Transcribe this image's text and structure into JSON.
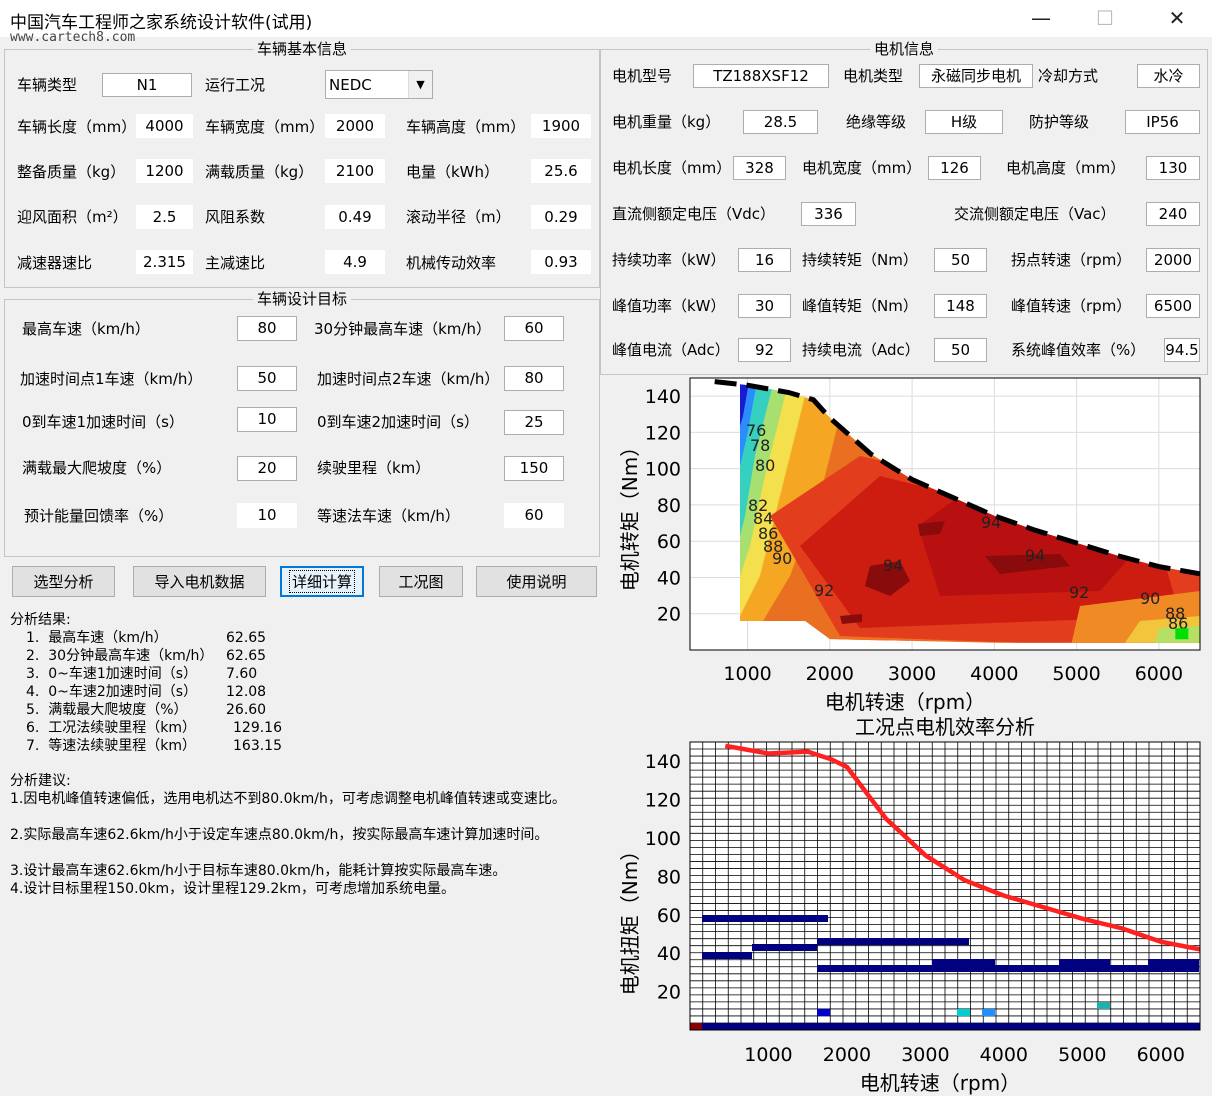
{
  "window": {
    "title": "中国汽车工程师之家系统设计软件(试用)",
    "watermark": "www.cartech8.com",
    "minimize": "—",
    "maximize": "☐",
    "close": "✕"
  },
  "vehicle_basic": {
    "title": "车辆基本信息",
    "vehicle_type_label": "车辆类型",
    "vehicle_type": "N1",
    "cycle_label": "运行工况",
    "cycle": "NEDC",
    "length_label": "车辆长度（mm）",
    "length": "4000",
    "width_label": "车辆宽度（mm）",
    "width": "2000",
    "height_label": "车辆高度（mm）",
    "height": "1900",
    "curb_mass_label": "整备质量（kg）",
    "curb_mass": "1200",
    "full_mass_label": "满载质量（kg）",
    "full_mass": "2100",
    "energy_label": "电量（kWh）",
    "energy": "25.6",
    "frontal_area_label": "迎风面积（m²）",
    "frontal_area": "2.5",
    "drag_label": "风阻系数",
    "drag": "0.49",
    "rolling_radius_label": "滚动半径（m）",
    "rolling_radius": "0.29",
    "reducer_label": "减速器速比",
    "reducer": "2.315",
    "final_drive_label": "主减速比",
    "final_drive": "4.9",
    "mech_eff_label": "机械传动效率",
    "mech_eff": "0.93"
  },
  "design_target": {
    "title": "车辆设计目标",
    "vmax_label": "最高车速（km/h）",
    "vmax": "80",
    "v30_label": "30分钟最高车速（km/h）",
    "v30": "60",
    "acc_v1_label": "加速时间点1车速（km/h）",
    "acc_v1": "50",
    "acc_v2_label": "加速时间点2车速（km/h）",
    "acc_v2": "80",
    "t1_label": "0到车速1加速时间（s）",
    "t1": "10",
    "t2_label": "0到车速2加速时间（s）",
    "t2": "25",
    "grade_label": "满载最大爬坡度（%）",
    "grade": "20",
    "range_label": "续驶里程（km）",
    "range": "150",
    "regen_label": "预计能量回馈率（%）",
    "regen": "10",
    "cs_speed_label": "等速法车速（km/h）",
    "cs_speed": "60"
  },
  "buttons": {
    "select": "选型分析",
    "import": "导入电机数据",
    "detail": "详细计算",
    "cycle": "工况图",
    "help": "使用说明"
  },
  "results": {
    "header": "分析结果:",
    "items": [
      {
        "label": "1.  最高车速（km/h）",
        "value": "62.65"
      },
      {
        "label": "2.  30分钟最高车速（km/h）",
        "value": "62.65"
      },
      {
        "label": "3.  0~车速1加速时间（s）",
        "value": "7.60"
      },
      {
        "label": "4.  0~车速2加速时间（s）",
        "value": "12.08"
      },
      {
        "label": "5.  满载最大爬坡度（%）",
        "value": "26.60"
      },
      {
        "label": "6.  工况法续驶里程（km）",
        "value": "129.16"
      },
      {
        "label": "7.  等速法续驶里程（km）",
        "value": "163.15"
      }
    ]
  },
  "advice": {
    "header": "分析建议:",
    "items": [
      "1.因电机峰值转速偏低，选用电机达不到80.0km/h，可考虑调整电机峰值转速或变速比。",
      "2.实际最高车速62.6km/h小于设定车速点80.0km/h，按实际最高车速计算加速时间。",
      "3.设计最高车速62.6km/h小于目标车速80.0km/h，能耗计算按实际最高车速。",
      "4.设计目标里程150.0km，设计里程129.2km，可考虑增加系统电量。"
    ]
  },
  "motor": {
    "title": "电机信息",
    "model_label": "电机型号",
    "model": "TZ188XSF12",
    "type_label": "电机类型",
    "type": "永磁同步电机",
    "cooling_label": "冷却方式",
    "cooling": "水冷",
    "weight_label": "电机重量（kg）",
    "weight": "28.5",
    "insulation_label": "绝缘等级",
    "insulation": "H级",
    "protection_label": "防护等级",
    "protection": "IP56",
    "mlen_label": "电机长度（mm）",
    "mlen": "328",
    "mwid_label": "电机宽度（mm）",
    "mwid": "126",
    "mhei_label": "电机高度（mm）",
    "mhei": "130",
    "vdc_label": "直流侧额定电压（Vdc）",
    "vdc": "336",
    "vac_label": "交流侧额定电压（Vac）",
    "vac": "240",
    "cont_power_label": "持续功率（kW）",
    "cont_power": "16",
    "cont_torque_label": "持续转矩（Nm）",
    "cont_torque": "50",
    "knee_label": "拐点转速（rpm）",
    "knee": "2000",
    "peak_power_label": "峰值功率（kW）",
    "peak_power": "30",
    "peak_torque_label": "峰值转矩（Nm）",
    "peak_torque": "148",
    "peak_speed_label": "峰值转速（rpm）",
    "peak_speed": "6500",
    "peak_current_label": "峰值电流（Adc）",
    "peak_current": "92",
    "cont_current_label": "持续电流（Adc）",
    "cont_current": "50",
    "sys_eff_label": "系统峰值效率（%）",
    "sys_eff": "94.5"
  },
  "chart_data": [
    {
      "type": "heatmap",
      "title": "",
      "xlabel": "电机转速（rpm）",
      "ylabel": "电机转矩（Nm）",
      "xlim": [
        300,
        6500
      ],
      "ylim": [
        0,
        150
      ],
      "xticks": [
        1000,
        2000,
        3000,
        4000,
        5000,
        6000
      ],
      "yticks": [
        20,
        40,
        60,
        80,
        100,
        120,
        140
      ],
      "contour_labels": [
        "76",
        "78",
        "80",
        "82",
        "84",
        "86",
        "88",
        "90",
        "92",
        "94"
      ],
      "peak_torque_curve": {
        "x": [
          600,
          1000,
          1500,
          1800,
          2000,
          2500,
          3000,
          3500,
          4000,
          4500,
          5000,
          5500,
          6000,
          6500
        ],
        "y": [
          148,
          146,
          142,
          138,
          128,
          108,
          94,
          84,
          74,
          66,
          59,
          52,
          46,
          42
        ]
      }
    },
    {
      "type": "heatmap",
      "title": "工况点电机效率分析",
      "xlabel": "电机转速（rpm）",
      "ylabel": "电机扭矩（Nm）",
      "xlim": [
        0,
        6500
      ],
      "ylim": [
        0,
        150
      ],
      "xticks": [
        1000,
        2000,
        3000,
        4000,
        5000,
        6000
      ],
      "yticks": [
        20,
        40,
        60,
        80,
        100,
        120,
        140
      ],
      "peak_torque_curve": {
        "x": [
          450,
          1000,
          1500,
          1800,
          2000,
          2500,
          3000,
          3500,
          4000,
          4500,
          5000,
          5500,
          6000,
          6500
        ],
        "y": [
          148,
          144,
          145,
          141,
          137,
          110,
          91,
          78,
          70,
          64,
          58,
          53,
          46,
          42
        ]
      }
    }
  ]
}
